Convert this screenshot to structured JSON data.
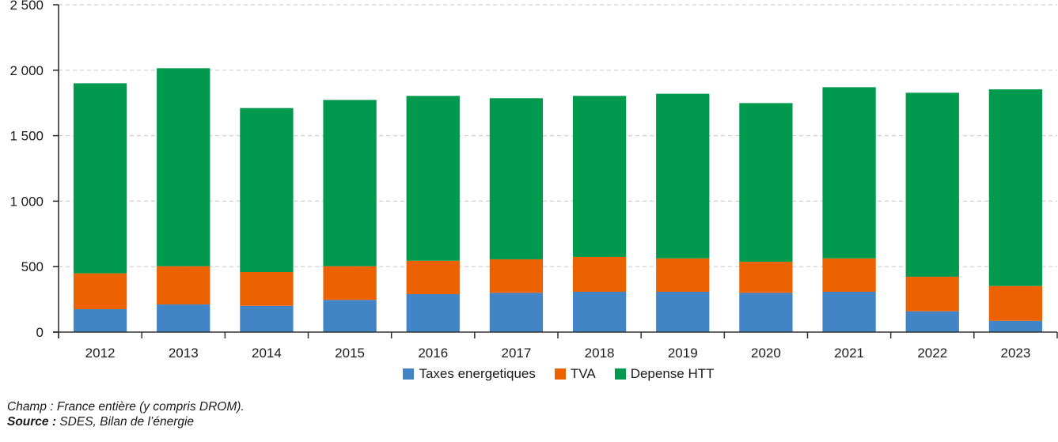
{
  "chart_data": {
    "type": "bar",
    "stacked": true,
    "title": "",
    "xlabel": "",
    "ylabel": "",
    "ylim": [
      0,
      2500
    ],
    "yticks": [
      0,
      500,
      1000,
      1500,
      2000,
      2500
    ],
    "ytick_labels": [
      "0",
      "500",
      "1 000",
      "1 500",
      "2 000",
      "2 500"
    ],
    "grid": "horizontal-dashed",
    "legend_position": "bottom-center",
    "categories": [
      "2012",
      "2013",
      "2014",
      "2015",
      "2016",
      "2017",
      "2018",
      "2019",
      "2020",
      "2021",
      "2022",
      "2023"
    ],
    "series": [
      {
        "name": "Taxes energetiques",
        "color": "#4285c6",
        "values": [
          175,
          211,
          201,
          246,
          290,
          300,
          308,
          308,
          300,
          308,
          159,
          86
        ]
      },
      {
        "name": "TVA",
        "color": "#ec6100",
        "values": [
          274,
          292,
          258,
          257,
          255,
          256,
          266,
          255,
          237,
          255,
          264,
          266
        ]
      },
      {
        "name": "Depense HTT",
        "color": "#00994e",
        "values": [
          1451,
          1512,
          1252,
          1270,
          1259,
          1230,
          1230,
          1257,
          1212,
          1307,
          1405,
          1502
        ]
      }
    ]
  },
  "footer": {
    "champ": "Champ : France entière (y compris DROM).",
    "source_label": "Source :",
    "source_text": " SDES, Bilan de l’énergie"
  }
}
